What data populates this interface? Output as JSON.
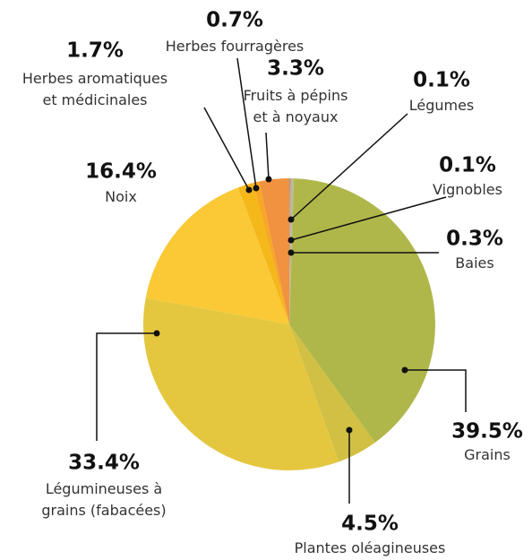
{
  "chart_data": {
    "type": "pie",
    "categories": [
      "Légumes",
      "Vignobles",
      "Baies",
      "Grains",
      "Plantes oléagineuses",
      "Légumineuses à\ngrains (fabacées)",
      "Noix",
      "Herbes aromatiques\net médicinales",
      "Herbes fourragères",
      "Fruits à pépins\net à noyaux"
    ],
    "values": [
      0.1,
      0.1,
      0.3,
      39.5,
      4.5,
      33.4,
      16.4,
      1.7,
      0.7,
      3.3
    ],
    "value_labels": [
      "0.1%",
      "0.1%",
      "0.3%",
      "39.5%",
      "4.5%",
      "33.4%",
      "16.4%",
      "1.7%",
      "0.7%",
      "3.3%"
    ],
    "colors": [
      "#9e9e9e",
      "#b5a08a",
      "#c4b79a",
      "#b0b74a",
      "#d1c043",
      "#e4c73f",
      "#fac935",
      "#f5b81a",
      "#f7a823",
      "#f0923f"
    ]
  }
}
